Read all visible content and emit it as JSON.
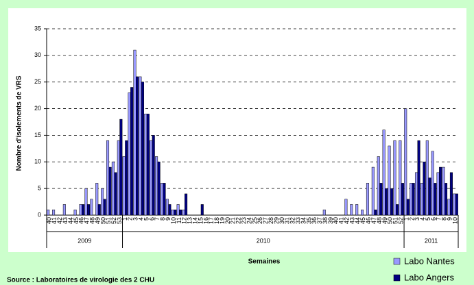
{
  "chart_data": {
    "type": "bar",
    "y_label": "Nombre d'isolements de VRS",
    "x_label": "Semaines",
    "source": "Source : Laboratoires de virologie des 2 CHU",
    "year_labels": [
      "2009",
      "2010",
      "2011"
    ],
    "categories": [
      "40",
      "41",
      "42",
      "43",
      "44",
      "45",
      "46",
      "47",
      "48",
      "49",
      "50",
      "51",
      "52",
      "53",
      "1",
      "2",
      "3",
      "4",
      "5",
      "6",
      "7",
      "8",
      "9",
      "10",
      "11",
      "12",
      "13",
      "14",
      "15",
      "16",
      "17",
      "18",
      "19",
      "20",
      "21",
      "22",
      "23",
      "24",
      "25",
      "26",
      "27",
      "28",
      "29",
      "30",
      "31",
      "32",
      "33",
      "34",
      "35",
      "36",
      "37",
      "38",
      "39",
      "40",
      "41",
      "42",
      "43",
      "44",
      "45",
      "46",
      "47",
      "48",
      "49",
      "50",
      "51",
      "52",
      "1",
      "2",
      "3",
      "4",
      "5",
      "6",
      "7",
      "8",
      "9",
      "10"
    ],
    "series": [
      {
        "name": "Labo Nantes",
        "color": "#9999ff",
        "values": [
          1,
          1,
          0,
          2,
          0,
          1,
          2,
          5,
          3,
          6,
          5,
          14,
          10,
          14,
          11,
          23,
          31,
          26,
          19,
          14,
          11,
          6,
          3,
          1,
          2,
          1,
          0,
          0,
          0,
          0,
          0,
          0,
          0,
          0,
          0,
          0,
          0,
          0,
          0,
          0,
          0,
          0,
          0,
          0,
          0,
          0,
          0,
          0,
          0,
          0,
          0,
          1,
          0,
          0,
          0,
          3,
          2,
          2,
          1,
          6,
          9,
          11,
          16,
          13,
          14,
          14,
          20,
          6,
          8,
          6,
          14,
          12,
          8,
          9,
          3,
          4
        ]
      },
      {
        "name": "Labo Angers",
        "color": "#000080",
        "values": [
          0,
          0,
          0,
          0,
          0,
          0,
          2,
          2,
          0,
          2,
          3,
          9,
          8,
          18,
          14,
          24,
          26,
          25,
          19,
          15,
          10,
          6,
          2,
          1,
          1,
          4,
          0,
          0,
          2,
          0,
          0,
          0,
          0,
          0,
          0,
          0,
          0,
          0,
          0,
          0,
          0,
          0,
          0,
          0,
          0,
          0,
          0,
          0,
          0,
          0,
          0,
          0,
          0,
          0,
          0,
          0,
          0,
          0,
          0,
          0,
          1,
          6,
          5,
          5,
          2,
          6,
          3,
          6,
          14,
          10,
          7,
          6,
          9,
          6,
          8,
          4
        ]
      }
    ],
    "ylim": [
      0,
      35
    ],
    "yticks": [
      0,
      5,
      10,
      15,
      20,
      25,
      30,
      35
    ],
    "grid": true
  }
}
